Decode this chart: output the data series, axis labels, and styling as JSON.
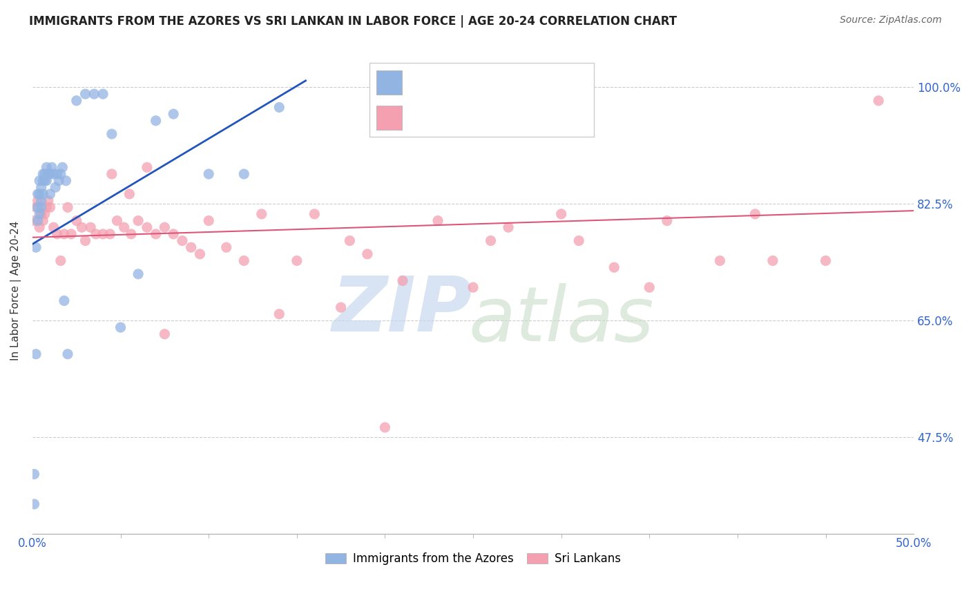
{
  "title": "IMMIGRANTS FROM THE AZORES VS SRI LANKAN IN LABOR FORCE | AGE 20-24 CORRELATION CHART",
  "source": "Source: ZipAtlas.com",
  "ylabel": "In Labor Force | Age 20-24",
  "ytick_labels": [
    "100.0%",
    "82.5%",
    "65.0%",
    "47.5%"
  ],
  "ytick_values": [
    1.0,
    0.825,
    0.65,
    0.475
  ],
  "xmin": 0.0,
  "xmax": 0.5,
  "ymin": 0.33,
  "ymax": 1.06,
  "color_azores": "#92b4e3",
  "color_srilanka": "#f4a0b0",
  "color_azores_line": "#2255bb",
  "color_srilanka_line": "#dd5577",
  "azores_scatter_x": [
    0.001,
    0.001,
    0.002,
    0.002,
    0.003,
    0.003,
    0.003,
    0.004,
    0.004,
    0.004,
    0.005,
    0.005,
    0.005,
    0.006,
    0.006,
    0.006,
    0.007,
    0.007,
    0.008,
    0.008,
    0.009,
    0.01,
    0.01,
    0.011,
    0.012,
    0.013,
    0.014,
    0.015,
    0.016,
    0.017,
    0.018,
    0.019,
    0.02,
    0.025,
    0.03,
    0.035,
    0.04,
    0.045,
    0.05,
    0.06,
    0.07,
    0.08,
    0.1,
    0.12,
    0.14
  ],
  "azores_scatter_y": [
    0.42,
    0.375,
    0.6,
    0.76,
    0.8,
    0.82,
    0.84,
    0.81,
    0.84,
    0.86,
    0.82,
    0.83,
    0.85,
    0.84,
    0.86,
    0.87,
    0.86,
    0.87,
    0.86,
    0.88,
    0.87,
    0.84,
    0.87,
    0.88,
    0.87,
    0.85,
    0.87,
    0.86,
    0.87,
    0.88,
    0.68,
    0.86,
    0.6,
    0.98,
    0.99,
    0.99,
    0.99,
    0.93,
    0.64,
    0.72,
    0.95,
    0.96,
    0.87,
    0.87,
    0.97
  ],
  "srilanka_scatter_x": [
    0.001,
    0.002,
    0.003,
    0.004,
    0.005,
    0.006,
    0.007,
    0.008,
    0.009,
    0.01,
    0.012,
    0.014,
    0.016,
    0.018,
    0.02,
    0.022,
    0.025,
    0.028,
    0.03,
    0.033,
    0.036,
    0.04,
    0.044,
    0.048,
    0.052,
    0.056,
    0.06,
    0.065,
    0.07,
    0.075,
    0.08,
    0.085,
    0.09,
    0.1,
    0.11,
    0.12,
    0.13,
    0.15,
    0.16,
    0.175,
    0.19,
    0.21,
    0.23,
    0.25,
    0.27,
    0.3,
    0.33,
    0.36,
    0.39,
    0.42,
    0.045,
    0.055,
    0.065,
    0.095,
    0.14,
    0.18,
    0.26,
    0.31,
    0.35,
    0.41,
    0.45,
    0.48,
    0.075,
    0.2
  ],
  "srilanka_scatter_y": [
    0.8,
    0.82,
    0.83,
    0.79,
    0.81,
    0.8,
    0.81,
    0.82,
    0.83,
    0.82,
    0.79,
    0.78,
    0.74,
    0.78,
    0.82,
    0.78,
    0.8,
    0.79,
    0.77,
    0.79,
    0.78,
    0.78,
    0.78,
    0.8,
    0.79,
    0.78,
    0.8,
    0.79,
    0.78,
    0.79,
    0.78,
    0.77,
    0.76,
    0.8,
    0.76,
    0.74,
    0.81,
    0.74,
    0.81,
    0.67,
    0.75,
    0.71,
    0.8,
    0.7,
    0.79,
    0.81,
    0.73,
    0.8,
    0.74,
    0.74,
    0.87,
    0.84,
    0.88,
    0.75,
    0.66,
    0.77,
    0.77,
    0.77,
    0.7,
    0.81,
    0.74,
    0.98,
    0.63,
    0.49
  ],
  "azores_trend_x": [
    0.0,
    0.155
  ],
  "azores_trend_y": [
    0.765,
    1.01
  ],
  "srilanka_trend_x": [
    0.0,
    0.5
  ],
  "srilanka_trend_y": [
    0.775,
    0.815
  ]
}
